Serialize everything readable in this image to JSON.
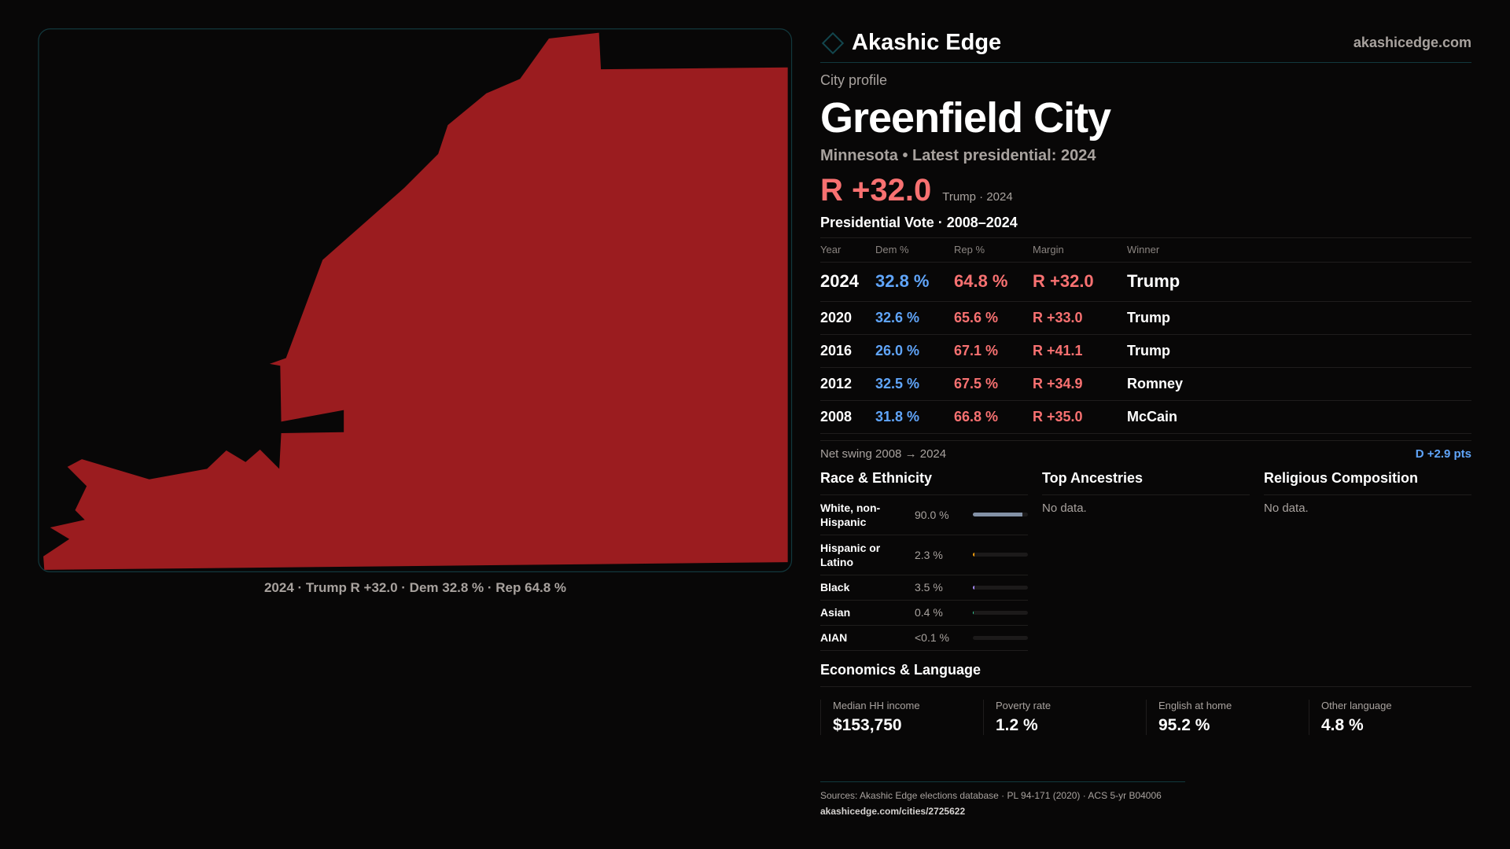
{
  "map": {
    "caption": "2024 · Trump R +32.0 · Dem 32.8 % · Rep 64.8 %",
    "fill": "#9b1c1f"
  },
  "header": {
    "brand": "Akashic Edge",
    "site": "akashicedge.com"
  },
  "profile": {
    "kicker": "City profile",
    "title": "Greenfield City",
    "subtitle": "Minnesota • Latest presidential: 2024",
    "margin": "R +32.0",
    "margin_note": "Trump · 2024"
  },
  "votes": {
    "title": "Presidential Vote · 2008–2024",
    "headers": [
      "Year",
      "Dem %",
      "Rep %",
      "Margin",
      "Winner"
    ],
    "rows": [
      [
        "2024",
        "32.8 %",
        "64.8 %",
        "R +32.0",
        "Trump"
      ],
      [
        "2020",
        "32.6 %",
        "65.6 %",
        "R +33.0",
        "Trump"
      ],
      [
        "2016",
        "26.0 %",
        "67.1 %",
        "R +41.1",
        "Trump"
      ],
      [
        "2012",
        "32.5 %",
        "67.5 %",
        "R +34.9",
        "Romney"
      ],
      [
        "2008",
        "31.8 %",
        "66.8 %",
        "R +35.0",
        "McCain"
      ]
    ],
    "swing_label": "Net swing 2008 → 2024",
    "swing_value": "D +2.9 pts"
  },
  "race": {
    "title": "Race & Ethnicity",
    "items": [
      {
        "label": "White, non-Hispanic",
        "value": "90.0 %",
        "pct": 90,
        "color": "#8391a6"
      },
      {
        "label": "Hispanic or Latino",
        "value": "2.3 %",
        "pct": 2.3,
        "color": "#f59e0b"
      },
      {
        "label": "Black",
        "value": "3.5 %",
        "pct": 3.5,
        "color": "#a78bfa"
      },
      {
        "label": "Asian",
        "value": "0.4 %",
        "pct": 0.4,
        "color": "#34d399"
      },
      {
        "label": "AIAN",
        "value": "<0.1 %",
        "pct": 0,
        "color": "#888888"
      }
    ]
  },
  "ancestries": {
    "title": "Top Ancestries",
    "empty": "No data."
  },
  "religion": {
    "title": "Religious Composition",
    "empty": "No data."
  },
  "economics": {
    "title": "Economics & Language",
    "stats": [
      {
        "label": "Median HH income",
        "value": "$153,750"
      },
      {
        "label": "Poverty rate",
        "value": "1.2 %"
      },
      {
        "label": "English at home",
        "value": "95.2 %"
      },
      {
        "label": "Other language",
        "value": "4.8 %"
      }
    ]
  },
  "footer": {
    "sources": "Sources: Akashic Edge elections database · PL 94-171 (2020) · ACS 5-yr B04006",
    "url": "akashicedge.com/cities/2725622"
  }
}
